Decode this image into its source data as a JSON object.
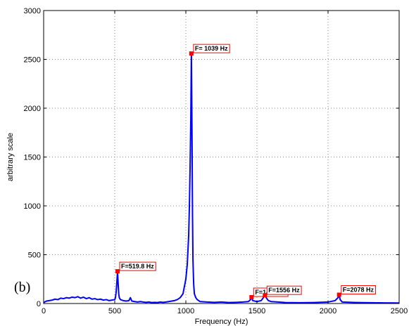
{
  "panel_label": "(b)",
  "chart_data": {
    "type": "line",
    "title": "",
    "xlabel": "Frequency (Hz)",
    "ylabel": "arbitrary scale",
    "xlim": [
      0,
      2500
    ],
    "ylim": [
      0,
      3000
    ],
    "xticks": [
      0,
      500,
      1000,
      1500,
      2000,
      2500
    ],
    "yticks": [
      0,
      500,
      1000,
      1500,
      2000,
      2500,
      3000
    ],
    "grid": true,
    "line_color": "#0000ff",
    "marker_color": "#ff0000",
    "series": [
      {
        "x": [
          0,
          20,
          40,
          60,
          80,
          100,
          120,
          140,
          160,
          180,
          200,
          220,
          240,
          260,
          280,
          300,
          320,
          340,
          360,
          380,
          400,
          420,
          440,
          460,
          480,
          500,
          505,
          510,
          515,
          519.8,
          524,
          528,
          532,
          540,
          560,
          580,
          600,
          610,
          620,
          640,
          660,
          680,
          700,
          720,
          740,
          760,
          780,
          800,
          820,
          840,
          860,
          880,
          900,
          920,
          940,
          960,
          980,
          1000,
          1010,
          1020,
          1025,
          1030,
          1035,
          1039,
          1043,
          1047,
          1050,
          1055,
          1060,
          1070,
          1080,
          1100,
          1150,
          1200,
          1250,
          1300,
          1350,
          1400,
          1440,
          1455,
          1462,
          1470,
          1500,
          1530,
          1545,
          1556,
          1565,
          1580,
          1600,
          1650,
          1700,
          1800,
          1900,
          2000,
          2050,
          2070,
          2078,
          2085,
          2100,
          2200,
          2300,
          2400,
          2500
        ],
        "y": [
          10,
          25,
          30,
          35,
          45,
          40,
          55,
          50,
          60,
          55,
          65,
          60,
          70,
          55,
          65,
          50,
          60,
          45,
          50,
          40,
          45,
          35,
          40,
          30,
          35,
          40,
          60,
          120,
          220,
          330,
          200,
          100,
          60,
          40,
          30,
          25,
          30,
          60,
          25,
          20,
          15,
          20,
          15,
          12,
          15,
          10,
          12,
          10,
          15,
          12,
          15,
          20,
          25,
          30,
          40,
          60,
          100,
          250,
          400,
          700,
          1000,
          1400,
          1900,
          2560,
          1800,
          900,
          450,
          200,
          100,
          60,
          40,
          20,
          15,
          12,
          15,
          10,
          12,
          15,
          20,
          40,
          70,
          30,
          20,
          30,
          60,
          90,
          60,
          30,
          20,
          15,
          10,
          8,
          10,
          15,
          30,
          60,
          95,
          40,
          15,
          10,
          8,
          6,
          5
        ]
      }
    ],
    "annotations": [
      {
        "x": 519.8,
        "y": 330,
        "text": "F=519.8 Hz"
      },
      {
        "x": 1039,
        "y": 2560,
        "text": "F= 1039 Hz"
      },
      {
        "x": 1462,
        "y": 65,
        "text": "F=1462 Hz"
      },
      {
        "x": 1556,
        "y": 85,
        "text": "F=1556 Hz"
      },
      {
        "x": 2078,
        "y": 90,
        "text": "F=2078 Hz"
      }
    ]
  }
}
